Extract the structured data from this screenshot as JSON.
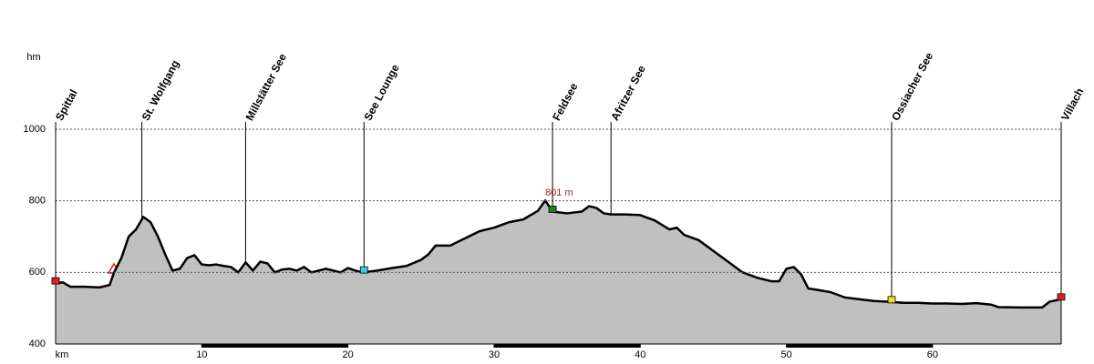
{
  "chart_data": {
    "type": "area",
    "y_label": "hm",
    "x_label": "km",
    "color": "#c0c0c0",
    "line_color": "#000000",
    "xlim": [
      0,
      68.8
    ],
    "ylim": [
      400,
      1000
    ],
    "xticks": [
      10,
      20,
      30,
      40,
      50,
      60
    ],
    "yticks": [
      400,
      600,
      800,
      1000
    ],
    "grid": true,
    "x": [
      0,
      0.5,
      1,
      2,
      3,
      3.7,
      4,
      4.5,
      5,
      5.5,
      6,
      6.5,
      7,
      7.5,
      8,
      8.5,
      9,
      9.5,
      10,
      10.5,
      11,
      11.5,
      12,
      12.5,
      13,
      13.5,
      14,
      14.5,
      15,
      15.5,
      16,
      16.5,
      17,
      17.5,
      18,
      18.5,
      19,
      19.5,
      20,
      20.5,
      21,
      22,
      23,
      24,
      25,
      25.5,
      26,
      27,
      28,
      29,
      30,
      31,
      32,
      33,
      33.5,
      34,
      35,
      36,
      36.5,
      37,
      37.5,
      38,
      39,
      40,
      41,
      42,
      42.5,
      43,
      44,
      45,
      46,
      47,
      48,
      49,
      49.5,
      50,
      50.5,
      51,
      51.5,
      52,
      53,
      54,
      55,
      56,
      57,
      58,
      59,
      60,
      61,
      62,
      63,
      64,
      64.5,
      66,
      67.5,
      68,
      68.8
    ],
    "values": [
      570,
      572,
      560,
      560,
      558,
      565,
      600,
      640,
      700,
      720,
      755,
      740,
      700,
      650,
      605,
      610,
      640,
      648,
      622,
      620,
      622,
      618,
      615,
      600,
      628,
      605,
      630,
      625,
      600,
      608,
      610,
      605,
      615,
      600,
      605,
      610,
      605,
      600,
      612,
      605,
      600,
      605,
      612,
      618,
      635,
      650,
      675,
      675,
      695,
      715,
      725,
      740,
      748,
      772,
      801,
      770,
      765,
      770,
      785,
      780,
      765,
      762,
      762,
      760,
      745,
      720,
      725,
      705,
      690,
      660,
      630,
      600,
      585,
      575,
      575,
      610,
      615,
      595,
      555,
      552,
      545,
      530,
      525,
      520,
      518,
      515,
      515,
      513,
      513,
      512,
      514,
      510,
      503,
      502,
      502,
      518,
      525
    ],
    "max": {
      "x": 33.5,
      "value": 801,
      "label": "801 m"
    },
    "waypoints": [
      {
        "name": "Spittal",
        "x": 0,
        "color": "#e02020"
      },
      {
        "name": "St. Wolfgang",
        "x": 5.9
      },
      {
        "name": "Millstätter See",
        "x": 13
      },
      {
        "name": "See Lounge",
        "x": 21.1,
        "color": "#40c8e8"
      },
      {
        "name": "Feldsee",
        "x": 34,
        "color": "#208020"
      },
      {
        "name": "Afritzer See",
        "x": 38
      },
      {
        "name": "Ossiacher See",
        "x": 57.2,
        "color": "#f0e020"
      },
      {
        "name": "Villach",
        "x": 68.8,
        "color": "#e02020"
      }
    ]
  }
}
